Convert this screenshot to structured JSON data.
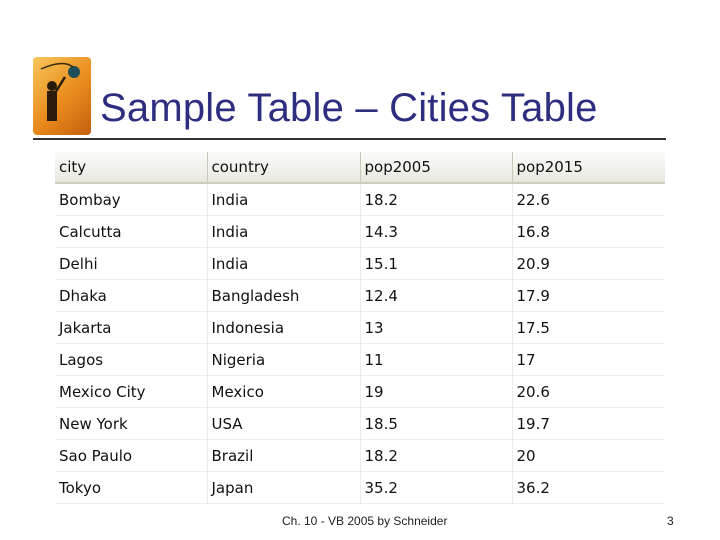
{
  "slide": {
    "title": "Sample Table – Cities Table",
    "footer": "Ch. 10 - VB 2005 by Schneider",
    "page_number": "3"
  },
  "table": {
    "columns": [
      "city",
      "country",
      "pop2005",
      "pop2015"
    ],
    "rows": [
      [
        "Bombay",
        "India",
        "18.2",
        "22.6"
      ],
      [
        "Calcutta",
        "India",
        "14.3",
        "16.8"
      ],
      [
        "Delhi",
        "India",
        "15.1",
        "20.9"
      ],
      [
        "Dhaka",
        "Bangladesh",
        "12.4",
        "17.9"
      ],
      [
        "Jakarta",
        "Indonesia",
        "13",
        "17.5"
      ],
      [
        "Lagos",
        "Nigeria",
        "11",
        "17"
      ],
      [
        "Mexico City",
        "Mexico",
        "19",
        "20.6"
      ],
      [
        "New York",
        "USA",
        "18.5",
        "19.7"
      ],
      [
        "Sao Paulo",
        "Brazil",
        "18.2",
        "20"
      ],
      [
        "Tokyo",
        "Japan",
        "35.2",
        "36.2"
      ]
    ]
  },
  "colors": {
    "title": "#2e2e80",
    "logo_orange": "#e98a1c"
  },
  "icons": {
    "logo": "golfer-logo-icon"
  }
}
